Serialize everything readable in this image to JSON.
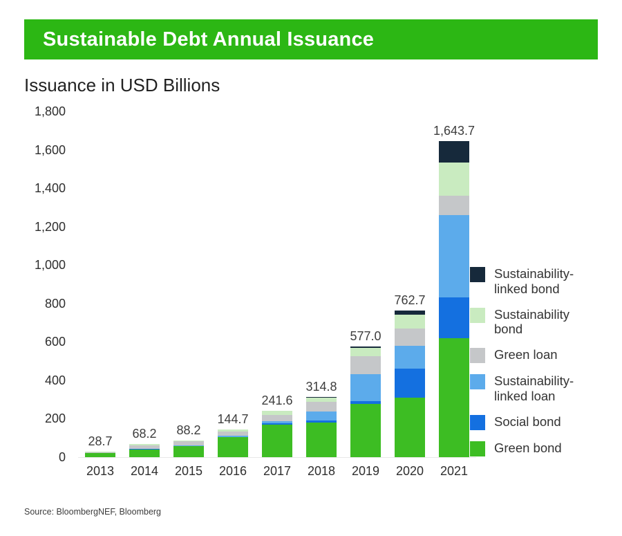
{
  "header": {
    "title": "Sustainable Debt Annual Issuance",
    "bg_color": "#2cb714",
    "text_color": "#ffffff"
  },
  "subtitle": "Issuance in USD Billions",
  "source": "Source: BloombergNEF, Bloomberg",
  "chart_data": {
    "type": "bar",
    "stacked": true,
    "title": "Sustainable Debt Annual Issuance",
    "ylabel": "Issuance in USD Billions",
    "xlabel": "",
    "grid": false,
    "legend_position": "right",
    "categories": [
      "2013",
      "2014",
      "2015",
      "2016",
      "2017",
      "2018",
      "2019",
      "2020",
      "2021"
    ],
    "totals": [
      "28.7",
      "68.2",
      "88.2",
      "144.7",
      "241.6",
      "314.8",
      "577.0",
      "762.7",
      "1,643.7"
    ],
    "ylim": [
      0,
      1800
    ],
    "yticks": [
      "0",
      "200",
      "400",
      "600",
      "800",
      "1,000",
      "1,200",
      "1,400",
      "1,600",
      "1,800"
    ],
    "ytick_values": [
      0,
      200,
      400,
      600,
      800,
      1000,
      1200,
      1400,
      1600,
      1800
    ],
    "series": [
      {
        "name": "Green bond",
        "color": "#3dbd23",
        "values": [
          20,
          40,
          57,
          103,
          168,
          180,
          277,
          310,
          620
        ]
      },
      {
        "name": "Social bond",
        "color": "#1470e0",
        "values": [
          1,
          2,
          2,
          3,
          9,
          12,
          15,
          150,
          210
        ]
      },
      {
        "name": "Sustainability-linked loan",
        "color": "#5cabeb",
        "values": [
          0,
          2,
          3,
          6,
          12,
          47,
          140,
          120,
          430
        ]
      },
      {
        "name": "Green loan",
        "color": "#c5c7c9",
        "values": [
          5,
          18,
          20,
          22,
          29,
          48,
          92,
          88,
          100
        ]
      },
      {
        "name": "Sustainability bond",
        "color": "#c9ebc0",
        "values": [
          2.7,
          6.2,
          6.2,
          9.7,
          22.6,
          22.8,
          45,
          75,
          175
        ]
      },
      {
        "name": "Sustainability-linked bond",
        "color": "#16293b",
        "values": [
          0,
          0,
          0,
          1,
          1,
          5,
          8,
          19.7,
          108.7
        ]
      }
    ]
  },
  "legend": {
    "items": [
      {
        "label": "Sustainability-linked bond",
        "color": "#16293b"
      },
      {
        "label": "Sustainability bond",
        "color": "#c9ebc0"
      },
      {
        "label": "Green loan",
        "color": "#c5c7c9"
      },
      {
        "label": "Sustainability-linked loan",
        "color": "#5cabeb"
      },
      {
        "label": "Social bond",
        "color": "#1470e0"
      },
      {
        "label": "Green bond",
        "color": "#3dbd23"
      }
    ]
  }
}
